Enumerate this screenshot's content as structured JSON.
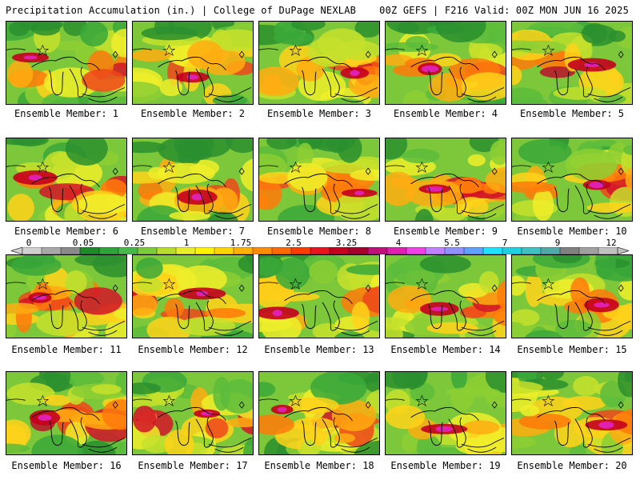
{
  "header": {
    "left": "Precipitation Accumulation (in.) | College of DuPage NEXLAB",
    "right": "00Z GEFS | F216 Valid: 00Z MON JUN 16 2025"
  },
  "member_label_prefix": "Ensemble Member:",
  "members": [
    "1",
    "2",
    "3",
    "4",
    "5",
    "6",
    "7",
    "8",
    "9",
    "10",
    "11",
    "12",
    "13",
    "14",
    "15",
    "16",
    "17",
    "18",
    "19",
    "20"
  ],
  "colorbar": {
    "labels": [
      "0",
      "0.05",
      "0.25",
      "1",
      "1.75",
      "2.5",
      "3.25",
      "4",
      "5.5",
      "7",
      "9",
      "12"
    ],
    "colors": [
      "#cfcfcf",
      "#a8a8a8",
      "#8a8a8a",
      "#1f8a2a",
      "#2ea33a",
      "#48b84a",
      "#7cc93a",
      "#b8dc2e",
      "#e8ef2a",
      "#fff200",
      "#ffd400",
      "#ffb000",
      "#ff8c00",
      "#ff6a00",
      "#ff3c00",
      "#e8141e",
      "#c4001e",
      "#a8002c",
      "#c0107a",
      "#e020b0",
      "#f040e8",
      "#c080ff",
      "#9090ff",
      "#60a0ff",
      "#20e0ff",
      "#20d0e0",
      "#40c0c0",
      "#50a8a8",
      "#808080",
      "#a0a0a0",
      "#c0c0c0"
    ]
  }
}
